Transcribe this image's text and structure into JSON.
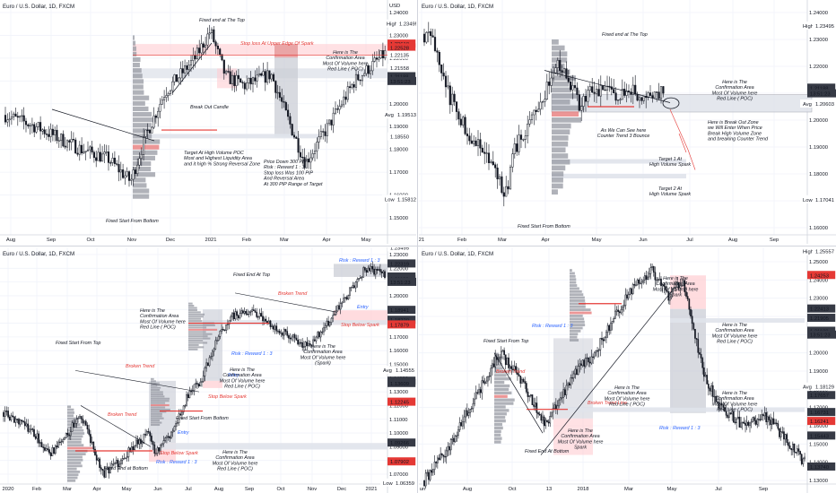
{
  "colors": {
    "up": "#ffffff",
    "down": "#131722",
    "red": "#e53935",
    "teal": "#26a69a",
    "grid": "#f0f3fa",
    "blue": "#2962ff",
    "dark": "#363a45"
  },
  "panels": [
    {
      "symbol": "Euro / U.S. Dollar, 1D, FXCM",
      "xticks": [
        "Aug",
        "Sep",
        "Oct",
        "Nov",
        "Dec",
        "2021",
        "Feb",
        "Mar",
        "Apr",
        "May"
      ],
      "yticks": [
        "1.24000",
        "1.23000",
        "1.22000",
        "1.21000",
        "1.20000",
        "1.19000",
        "1.18000",
        "1.17000",
        "1.16000",
        "1.15000"
      ],
      "flags": [
        {
          "text": "High"
        },
        {
          "text": "1.23495"
        },
        {
          "text": "1.22618"
        },
        {
          "text": "1.22528"
        },
        {
          "text": "1.22135"
        },
        {
          "text": "1.21558"
        },
        {
          "text": "1.21188"
        },
        {
          "text": "1.19513"
        },
        {
          "text": "Avg"
        },
        {
          "text": "1.18550"
        },
        {
          "text": "Low"
        },
        {
          "text": "1.15812"
        },
        {
          "text": "USD"
        },
        {
          "text": "13:51:23"
        }
      ],
      "annotations": [
        "Fixed end at The Top",
        "Stop loss At Upper Edge Of Spark",
        "Here is The Confirmation Area Most Of Volume here Red Line ( POC)",
        "Break Out Candle",
        "Target At High Volume POC Most and Highest Liquidity Area and it high % Strong Reversal Zone",
        "Price Down 300 PIP Risk : Reward 1 : 3 Stop loss Was 100 PIP And Reversal Area At 300 PIP Range of Target",
        "Fixed Start From Bottom"
      ]
    },
    {
      "symbol": "Euro / U.S. Dollar, 1D, FXCM",
      "xticks": [
        "21",
        "Feb",
        "Mar",
        "Apr",
        "May",
        "Jun",
        "Jul",
        "Aug",
        "Sep"
      ],
      "yticks": [
        "1.24000",
        "1.23000",
        "1.22000",
        "1.21000",
        "1.20000",
        "1.19000",
        "1.18000",
        "1.17000",
        "1.16000"
      ],
      "flags": [
        {
          "text": "High"
        },
        {
          "text": "1.23495"
        },
        {
          "text": "1.21188"
        },
        {
          "text": "13:51:23"
        },
        {
          "text": "Avg"
        },
        {
          "text": "1.20603"
        },
        {
          "text": "Low"
        },
        {
          "text": "1.17041"
        }
      ],
      "annotations": [
        "Fixed end at The Top",
        "Here is The Confirmation Area Most Of Volume here Red Line ( POC)",
        "Here is Break Out Zone we Will Enter When Price Break High Volume Zone and breaking Counter Trend",
        "As We Can See here Counter Trend 3 Bounce",
        "Target 1 At High Volume Spark",
        "Target 2 At High Volume Spark",
        "Fixed Start From Bottom"
      ]
    },
    {
      "symbol": "Euro / U.S. Dollar, 1D, FXCM",
      "xticks": [
        "2020",
        "Feb",
        "Mar",
        "Apr",
        "May",
        "Jun",
        "Jul",
        "Aug",
        "Sep",
        "Oct",
        "Nov",
        "Dec",
        "2021"
      ],
      "yticks": [
        "1.23000",
        "1.22000",
        "1.21000",
        "1.20000",
        "1.19000",
        "1.18000",
        "1.17000",
        "1.16000",
        "1.15000",
        "1.14000",
        "1.13000",
        "1.12000",
        "1.11000",
        "1.10000",
        "1.09000",
        "1.08000",
        "1.07000"
      ],
      "flags": [
        {
          "text": "1.23495"
        },
        {
          "text": "1.22319"
        },
        {
          "text": "1.21368"
        },
        {
          "text": "1.21188"
        },
        {
          "text": "13:51:23"
        },
        {
          "text": "1.18941"
        },
        {
          "text": "1.18220"
        },
        {
          "text": "1.17879"
        },
        {
          "text": "1.14555"
        },
        {
          "text": "Avg"
        },
        {
          "text": "1.13776"
        },
        {
          "text": "1.13609"
        },
        {
          "text": "1.12245"
        },
        {
          "text": "1.09266"
        },
        {
          "text": "1.07902"
        },
        {
          "text": "Low"
        },
        {
          "text": "1.06359"
        }
      ],
      "annotations": [
        "Risk : Reward 1 : 3",
        "Fixed End At Top",
        "Broken Trend",
        "Entry",
        "Stop Below Spark",
        "Here is The Confirmation Area Most Of Volume here Red Line ( POC)",
        "Risk : Reward 1 : 3",
        "Here is The Confirmation Area Most Of Volume here (Spark)",
        "Fixed Start From Top",
        "Broken Trend",
        "Entry",
        "Stop Below Spark",
        "Here is The Confirmation Area Most Of Volume here Red Line ( POC)",
        "Fixed Start From Bottom",
        "Broken Trend",
        "Entry",
        "Stop Below Spark",
        "Risk : Reward 1 : 3",
        "Fixed End at Bottom",
        "Here is The Confirmation Area Most Of Volume here Red Line ( POC)"
      ]
    },
    {
      "symbol": "Euro / U.S. Dollar, 1D, FXCM",
      "xticks": [
        "un",
        "Aug",
        "Oct",
        "13",
        "2018",
        "Mar",
        "May",
        "Jul",
        "Sep"
      ],
      "yticks": [
        "1.25000",
        "1.24000",
        "1.23000",
        "1.22000",
        "1.21000",
        "1.20000",
        "1.19000",
        "1.18000",
        "1.17000",
        "1.16000",
        "1.15000",
        "1.14000",
        "1.13000"
      ],
      "flags": [
        {
          "text": "High"
        },
        {
          "text": "1.25557"
        },
        {
          "text": "1.24253"
        },
        {
          "text": "1.22413"
        },
        {
          "text": "1.21905"
        },
        {
          "text": "1.21188"
        },
        {
          "text": "13:51:23"
        },
        {
          "text": "Avg"
        },
        {
          "text": "1.18129"
        },
        {
          "text": "1.17657"
        },
        {
          "text": "1.16731"
        },
        {
          "text": "1.16241"
        },
        {
          "text": "1.15443"
        },
        {
          "text": "1.13740"
        }
      ],
      "annotations": [
        "Here is The Confirmation Area Most Of Volume here Spark",
        "Here is The Confirmation Area Most Of Volume here Red Line ( POC)",
        "Fixed Start From Top",
        "Risk : Reward 1 : 3",
        "Broken Trend",
        "Broken Trend Line",
        "Here is The Confirmation Area Most Of Volume here Red Line ( POC)",
        "Here is The Confirmation Area Most Of Volume here Spark",
        "Fixed End At Bottom",
        "Here is The Confirmation Area Most Of Volume here Red Line ( POC)",
        "Risk : Reward 1 : 3"
      ]
    }
  ]
}
